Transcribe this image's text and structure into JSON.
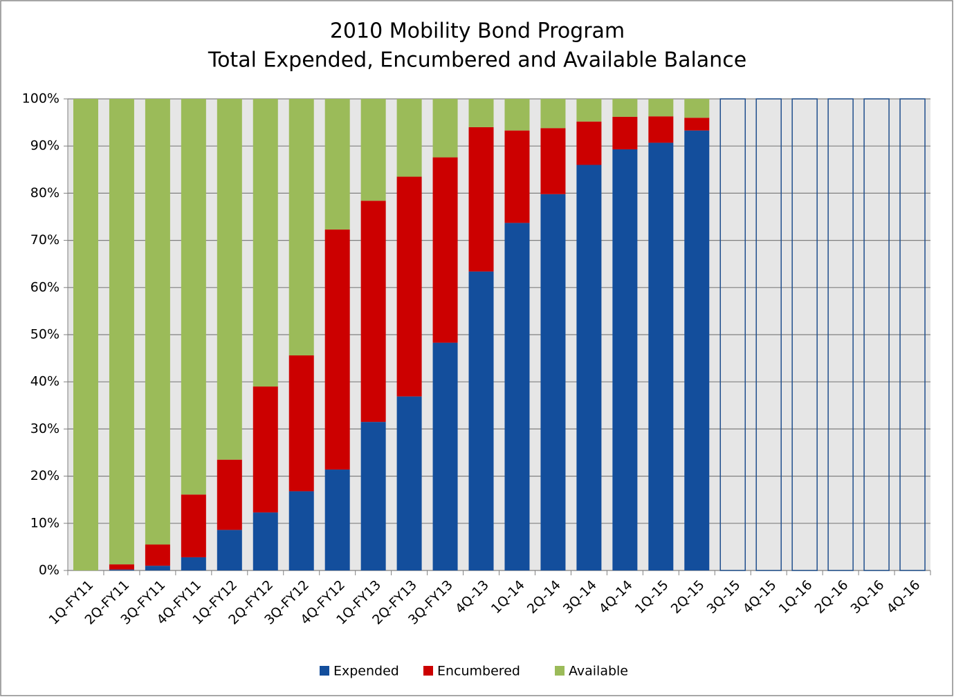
{
  "chart_data": {
    "type": "stacked_bar",
    "title": "2010 Mobility Bond Program",
    "subtitle": "Total Expended, Encumbered and Available Balance",
    "categories": [
      "1Q-FY11",
      "2Q-FY11",
      "3Q-FY11",
      "4Q-FY11",
      "1Q-FY12",
      "2Q-FY12",
      "3Q-FY12",
      "4Q-FY12",
      "1Q-FY13",
      "2Q-FY13",
      "3Q-FY13",
      "4Q-13",
      "1Q-14",
      "2Q-14",
      "3Q-14",
      "4Q-14",
      "1Q-15",
      "2Q-15",
      "3Q-15",
      "4Q-15",
      "1Q-16",
      "2Q-16",
      "3Q-16",
      "4Q-16"
    ],
    "series": [
      {
        "name": "Expended",
        "color": "#134e9c",
        "values": [
          0,
          0.2,
          1,
          2.8,
          8.6,
          12.3,
          16.8,
          21.4,
          31.5,
          36.9,
          48.3,
          63.4,
          73.7,
          79.8,
          86.0,
          89.3,
          90.7,
          93.3,
          null,
          null,
          null,
          null,
          null,
          null
        ]
      },
      {
        "name": "Encumbered",
        "color": "#cc0000",
        "values": [
          0,
          1.1,
          4.5,
          13.3,
          14.9,
          26.7,
          28.8,
          50.9,
          46.9,
          46.6,
          39.3,
          30.6,
          19.6,
          14.0,
          9.2,
          6.9,
          5.6,
          2.7,
          null,
          null,
          null,
          null,
          null,
          null
        ]
      },
      {
        "name": "Available",
        "color": "#9bbb59",
        "values": [
          100,
          98.7,
          94.5,
          83.9,
          76.5,
          61.0,
          54.4,
          27.7,
          21.6,
          16.5,
          12.4,
          6.0,
          6.7,
          6.2,
          4.8,
          3.8,
          3.7,
          4.0,
          null,
          null,
          null,
          null,
          null,
          null
        ]
      }
    ],
    "ylim": [
      0,
      100
    ],
    "yticks": [
      {
        "value": 0,
        "label": "0%"
      },
      {
        "value": 10,
        "label": "10%"
      },
      {
        "value": 20,
        "label": "20%"
      },
      {
        "value": 30,
        "label": "30%"
      },
      {
        "value": 40,
        "label": "40%"
      },
      {
        "value": 50,
        "label": "50%"
      },
      {
        "value": 60,
        "label": "60%"
      },
      {
        "value": 70,
        "label": "70%"
      },
      {
        "value": 80,
        "label": "80%"
      },
      {
        "value": 90,
        "label": "90%"
      },
      {
        "value": 100,
        "label": "100%"
      }
    ],
    "grid": true,
    "legend": "bottom"
  }
}
